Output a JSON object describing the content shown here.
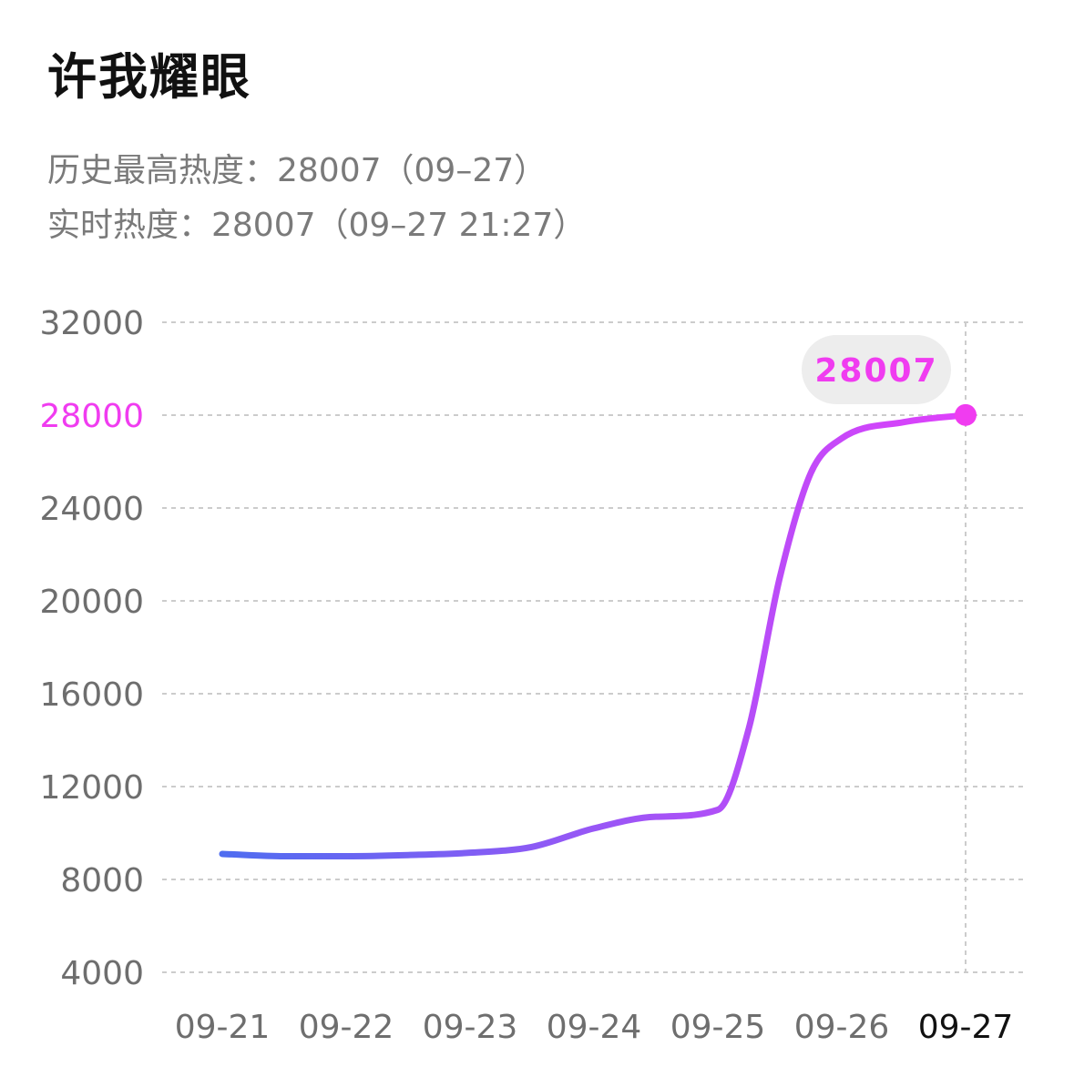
{
  "header": {
    "title": "许我耀眼",
    "peak_label": "历史最高热度：28007（09–27）",
    "realtime_label": "实时热度：28007（09–27 21:27）"
  },
  "colors": {
    "line_start": "#4F6DF0",
    "line_end": "#E040FB",
    "highlight": "#F03CF0",
    "badge_bg": "#EDEDED",
    "grid": "#CCCCCC",
    "axis_text": "#6E6E6E",
    "axis_text_current": "#111111"
  },
  "chart_data": {
    "type": "line",
    "categories": [
      "09-21",
      "09-22",
      "09-23",
      "09-24",
      "09-25",
      "09-26",
      "09-27"
    ],
    "x_ticks": [
      "09-21",
      "09-22",
      "09-23",
      "09-24",
      "09-25",
      "09-26",
      "09-27"
    ],
    "y_ticks": [
      "32000",
      "28000",
      "24000",
      "20000",
      "16000",
      "12000",
      "8000",
      "4000"
    ],
    "highlight_tick": "28000",
    "current_x_tick": "09-27",
    "ylim": [
      4000,
      32000
    ],
    "grid": true,
    "series": [
      {
        "x": [
          "09-21",
          "09-21 12:00",
          "09-22",
          "09-22 12:00",
          "09-23",
          "09-23 12:00",
          "09-24",
          "09-24 12:00",
          "09-25",
          "09-25 06:00",
          "09-25 12:00",
          "09-25 18:00",
          "09-26",
          "09-26 12:00",
          "09-27"
        ],
        "values": [
          9100,
          9000,
          9000,
          9050,
          9150,
          9400,
          10200,
          10700,
          11000,
          14500,
          21000,
          25500,
          27000,
          27700,
          28007
        ]
      }
    ],
    "point_x_index": [
      0,
      0.5,
      1,
      1.5,
      2,
      2.5,
      3,
      3.5,
      4,
      4.25,
      4.5,
      4.75,
      5,
      5.5,
      6
    ],
    "annotation": {
      "label": "28007",
      "x": "09-27",
      "value": 28007
    }
  }
}
